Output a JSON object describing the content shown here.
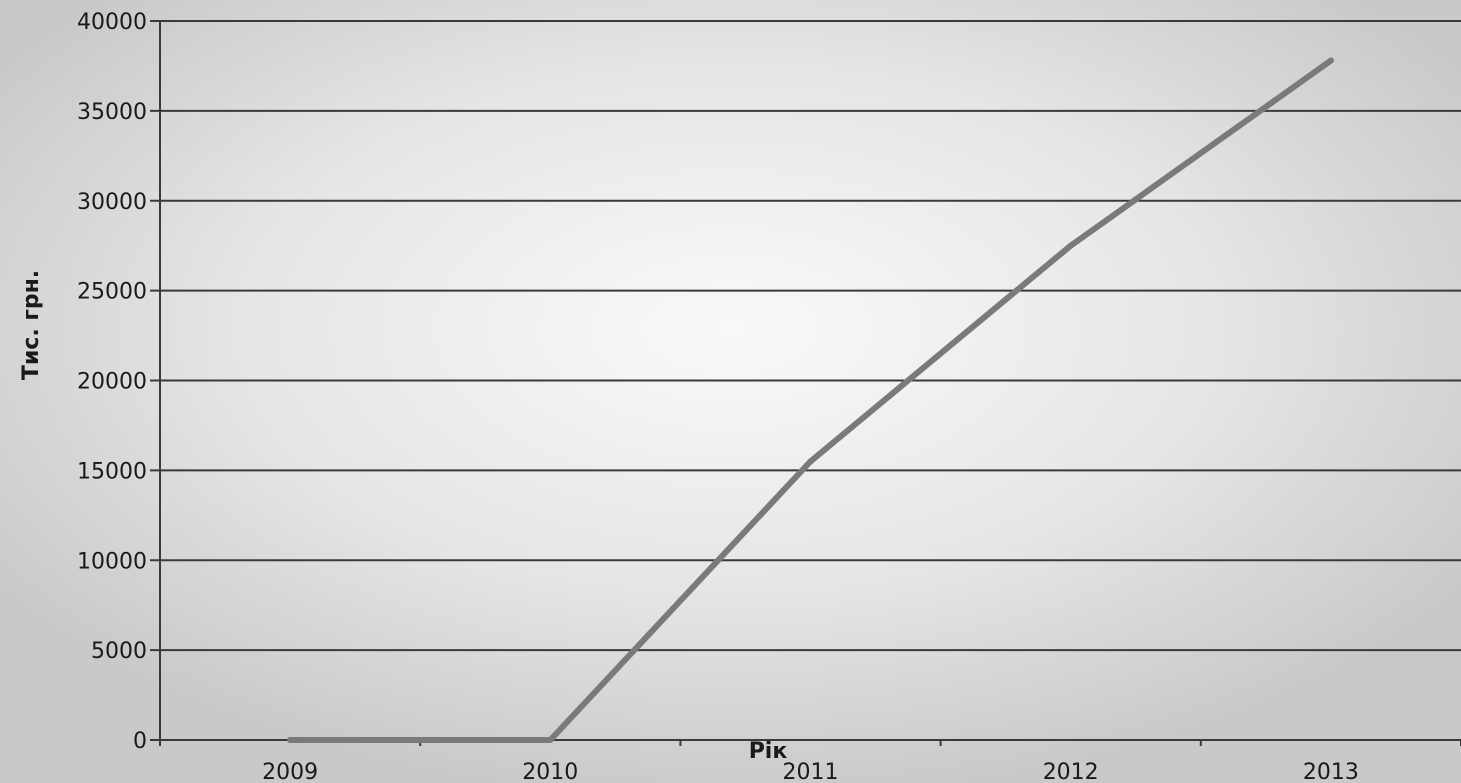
{
  "chart_data": {
    "type": "line",
    "xlabel": "Рік",
    "ylabel": "Тис. грн.",
    "categories": [
      "2009",
      "2010",
      "2011",
      "2012",
      "2013"
    ],
    "series": [
      {
        "values": [
          0,
          0,
          15500,
          27500,
          37800
        ]
      }
    ],
    "ylim": [
      0,
      40000
    ],
    "yticks": [
      0,
      5000,
      10000,
      15000,
      20000,
      25000,
      30000,
      35000,
      40000
    ],
    "grid": "horizontal",
    "line_color": "#7a7a7a",
    "grid_color": "#3a3a3a"
  }
}
